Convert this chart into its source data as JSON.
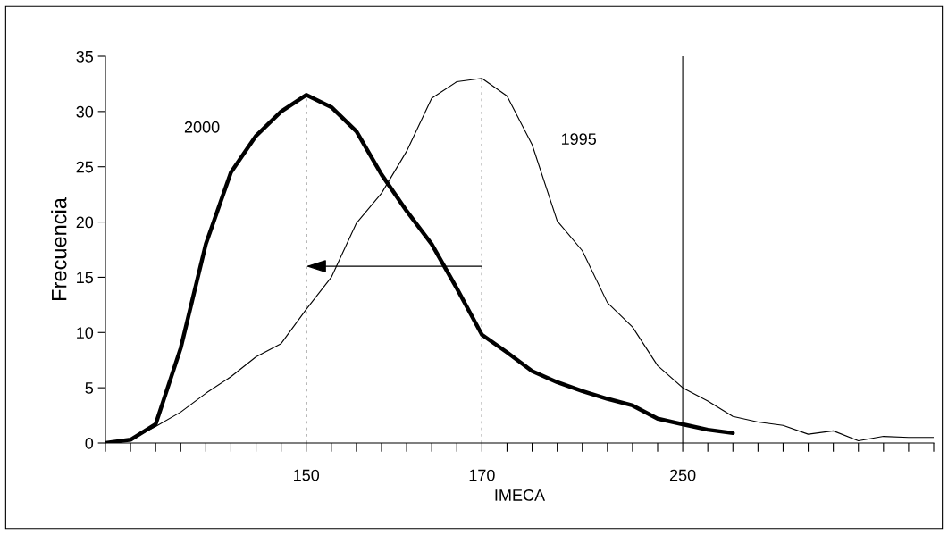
{
  "chart_data": {
    "type": "line",
    "xlabel": "IMECA",
    "ylabel": "Frecuencia",
    "categories": [
      null,
      null,
      null,
      null,
      null,
      null,
      null,
      null,
      "150",
      null,
      null,
      null,
      null,
      null,
      null,
      "170",
      null,
      null,
      null,
      null,
      null,
      null,
      null,
      "250",
      null,
      null,
      null,
      null,
      null,
      null,
      null,
      null,
      null,
      null
    ],
    "ylim": [
      0,
      35
    ],
    "yticks": [
      0,
      5,
      10,
      15,
      20,
      25,
      30,
      35
    ],
    "grid": false,
    "legend": false,
    "marker": "none",
    "series": [
      {
        "name": "2000",
        "color": "#000000",
        "values": [
          0,
          0.3,
          1.7,
          8.6,
          18.0,
          24.5,
          27.8,
          30.0,
          31.5,
          30.4,
          28.2,
          24.3,
          21.0,
          18.0,
          14.0,
          9.8,
          8.2,
          6.5,
          5.5,
          4.7,
          4.0,
          3.4,
          2.2,
          1.7,
          1.2,
          0.9,
          null,
          null,
          null,
          null,
          null,
          null,
          null,
          null
        ]
      },
      {
        "name": "1995",
        "color": "#000000",
        "values": [
          0,
          0.3,
          1.5,
          2.8,
          4.5,
          6.0,
          7.8,
          9.0,
          12.1,
          15.0,
          19.9,
          22.6,
          26.4,
          31.2,
          32.7,
          33.0,
          31.4,
          27.0,
          20.1,
          17.4,
          12.7,
          10.5,
          7.0,
          5.0,
          3.8,
          2.4,
          1.9,
          1.6,
          0.8,
          1.1,
          0.2,
          0.6,
          0.5,
          0.5
        ]
      }
    ],
    "ref_lines": [
      {
        "axis": "x",
        "value": "150",
        "line_style": "dashed"
      },
      {
        "axis": "x",
        "value": "170",
        "line_style": "dashed"
      },
      {
        "axis": "x",
        "value": "250",
        "line_style": "solid"
      }
    ]
  }
}
